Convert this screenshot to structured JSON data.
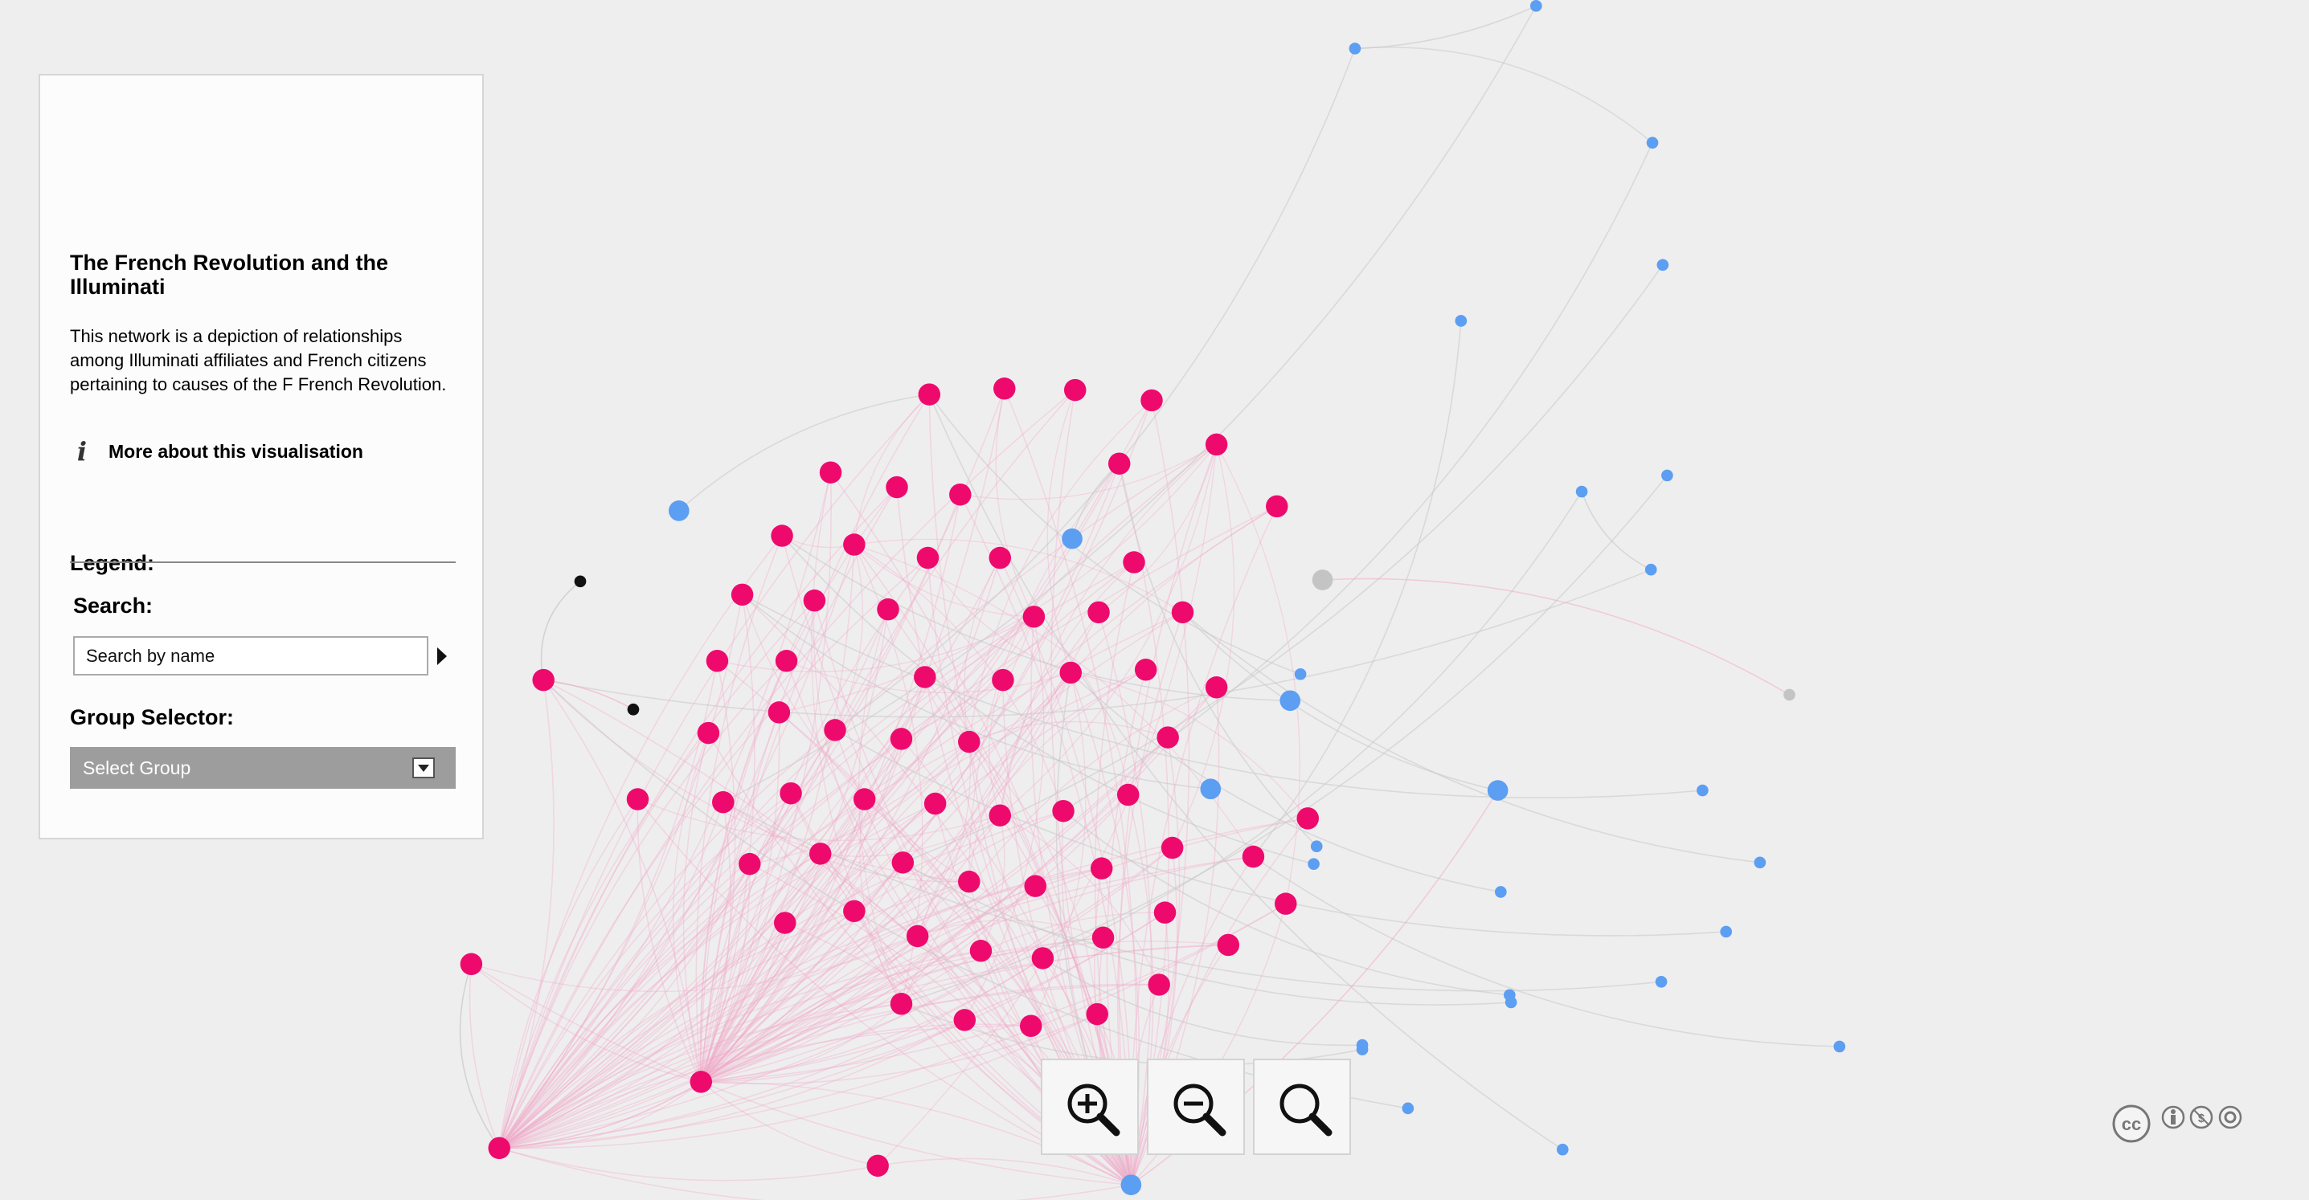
{
  "sidebar": {
    "title": "The French Revolution and the Illuminati",
    "description": "This network is a depiction of relationships among Illuminati affiliates and French citizens pertaining to causes of the F French Revolution.",
    "more_link": "More about this visualisation",
    "legend_label": "Legend:",
    "search_label": "Search:",
    "search_placeholder": "Search by name",
    "search_value": "",
    "group_label": "Group Selector:",
    "group_selected": "Select Group"
  },
  "zoom_controls": {
    "zoom_in_icon": "zoom-in-icon",
    "zoom_out_icon": "zoom-out-icon",
    "reset_icon": "magnifier-icon"
  },
  "license": {
    "icons": [
      "cc-icon",
      "by-icon",
      "nc-icon",
      "sa-icon"
    ]
  },
  "colors": {
    "background": "#efeeee",
    "node_pink": "#ee0a6d",
    "node_blue": "#5c9ef2",
    "node_black": "#111111",
    "node_grey": "#c4c4c4",
    "edge_pink": "#f2a8c8",
    "edge_grey": "#c8c8c8"
  }
}
